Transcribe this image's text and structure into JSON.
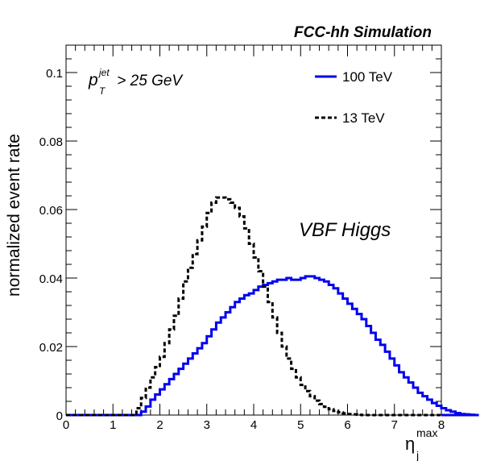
{
  "chart_data": {
    "type": "line",
    "title": "FCC-hh Simulation",
    "xlabel_base": "η",
    "xlabel_sub": "j",
    "xlabel_sup": "max",
    "ylabel": "normalized event rate",
    "xlim": [
      0,
      8
    ],
    "ylim": [
      0,
      0.108
    ],
    "x_ticks": [
      0,
      1,
      2,
      3,
      4,
      5,
      6,
      7,
      8
    ],
    "y_ticks": [
      0,
      0.02,
      0.04,
      0.06,
      0.08,
      0.1
    ],
    "y_tick_labels": [
      "0",
      "0.02",
      "0.04",
      "0.06",
      "0.08",
      "0.1"
    ],
    "bin_width": 0.1,
    "cut_label": {
      "p": "p",
      "sup": "jet",
      "sub": "T",
      "rest": " > 25 GeV"
    },
    "annotation": "VBF Higgs",
    "grid": false,
    "legend_placement": "top-right",
    "series": [
      {
        "name": "100 TeV",
        "style": "solid",
        "color": "#0000ee",
        "x_start": 1.5,
        "values": [
          0.0,
          0.001,
          0.0025,
          0.0045,
          0.006,
          0.0075,
          0.009,
          0.0105,
          0.012,
          0.0135,
          0.015,
          0.0165,
          0.018,
          0.0195,
          0.021,
          0.023,
          0.025,
          0.027,
          0.0285,
          0.03,
          0.0315,
          0.033,
          0.034,
          0.035,
          0.0355,
          0.0365,
          0.0375,
          0.038,
          0.0385,
          0.039,
          0.0395,
          0.0395,
          0.04,
          0.0395,
          0.0395,
          0.04,
          0.0405,
          0.0405,
          0.04,
          0.0395,
          0.039,
          0.038,
          0.037,
          0.0355,
          0.034,
          0.0325,
          0.031,
          0.0295,
          0.028,
          0.026,
          0.024,
          0.022,
          0.0205,
          0.0185,
          0.0165,
          0.0145,
          0.0125,
          0.011,
          0.0095,
          0.008,
          0.0065,
          0.0055,
          0.0045,
          0.0035,
          0.0027,
          0.002,
          0.0014,
          0.001,
          0.0006,
          0.0003,
          0.0002,
          0.0001,
          0.0
        ]
      },
      {
        "name": "13 TeV",
        "style": "dashed",
        "color": "#000000",
        "x_start": 1.5,
        "values": [
          0.002,
          0.005,
          0.008,
          0.011,
          0.014,
          0.017,
          0.021,
          0.025,
          0.029,
          0.034,
          0.039,
          0.043,
          0.047,
          0.051,
          0.055,
          0.059,
          0.062,
          0.0635,
          0.0635,
          0.063,
          0.062,
          0.0605,
          0.058,
          0.0545,
          0.05,
          0.046,
          0.042,
          0.0375,
          0.033,
          0.0285,
          0.024,
          0.02,
          0.0165,
          0.0135,
          0.011,
          0.0088,
          0.007,
          0.0055,
          0.0042,
          0.0032,
          0.0024,
          0.0017,
          0.0012,
          0.0008,
          0.0005,
          0.0003,
          0.0002,
          0.0001,
          0.0
        ]
      }
    ]
  }
}
